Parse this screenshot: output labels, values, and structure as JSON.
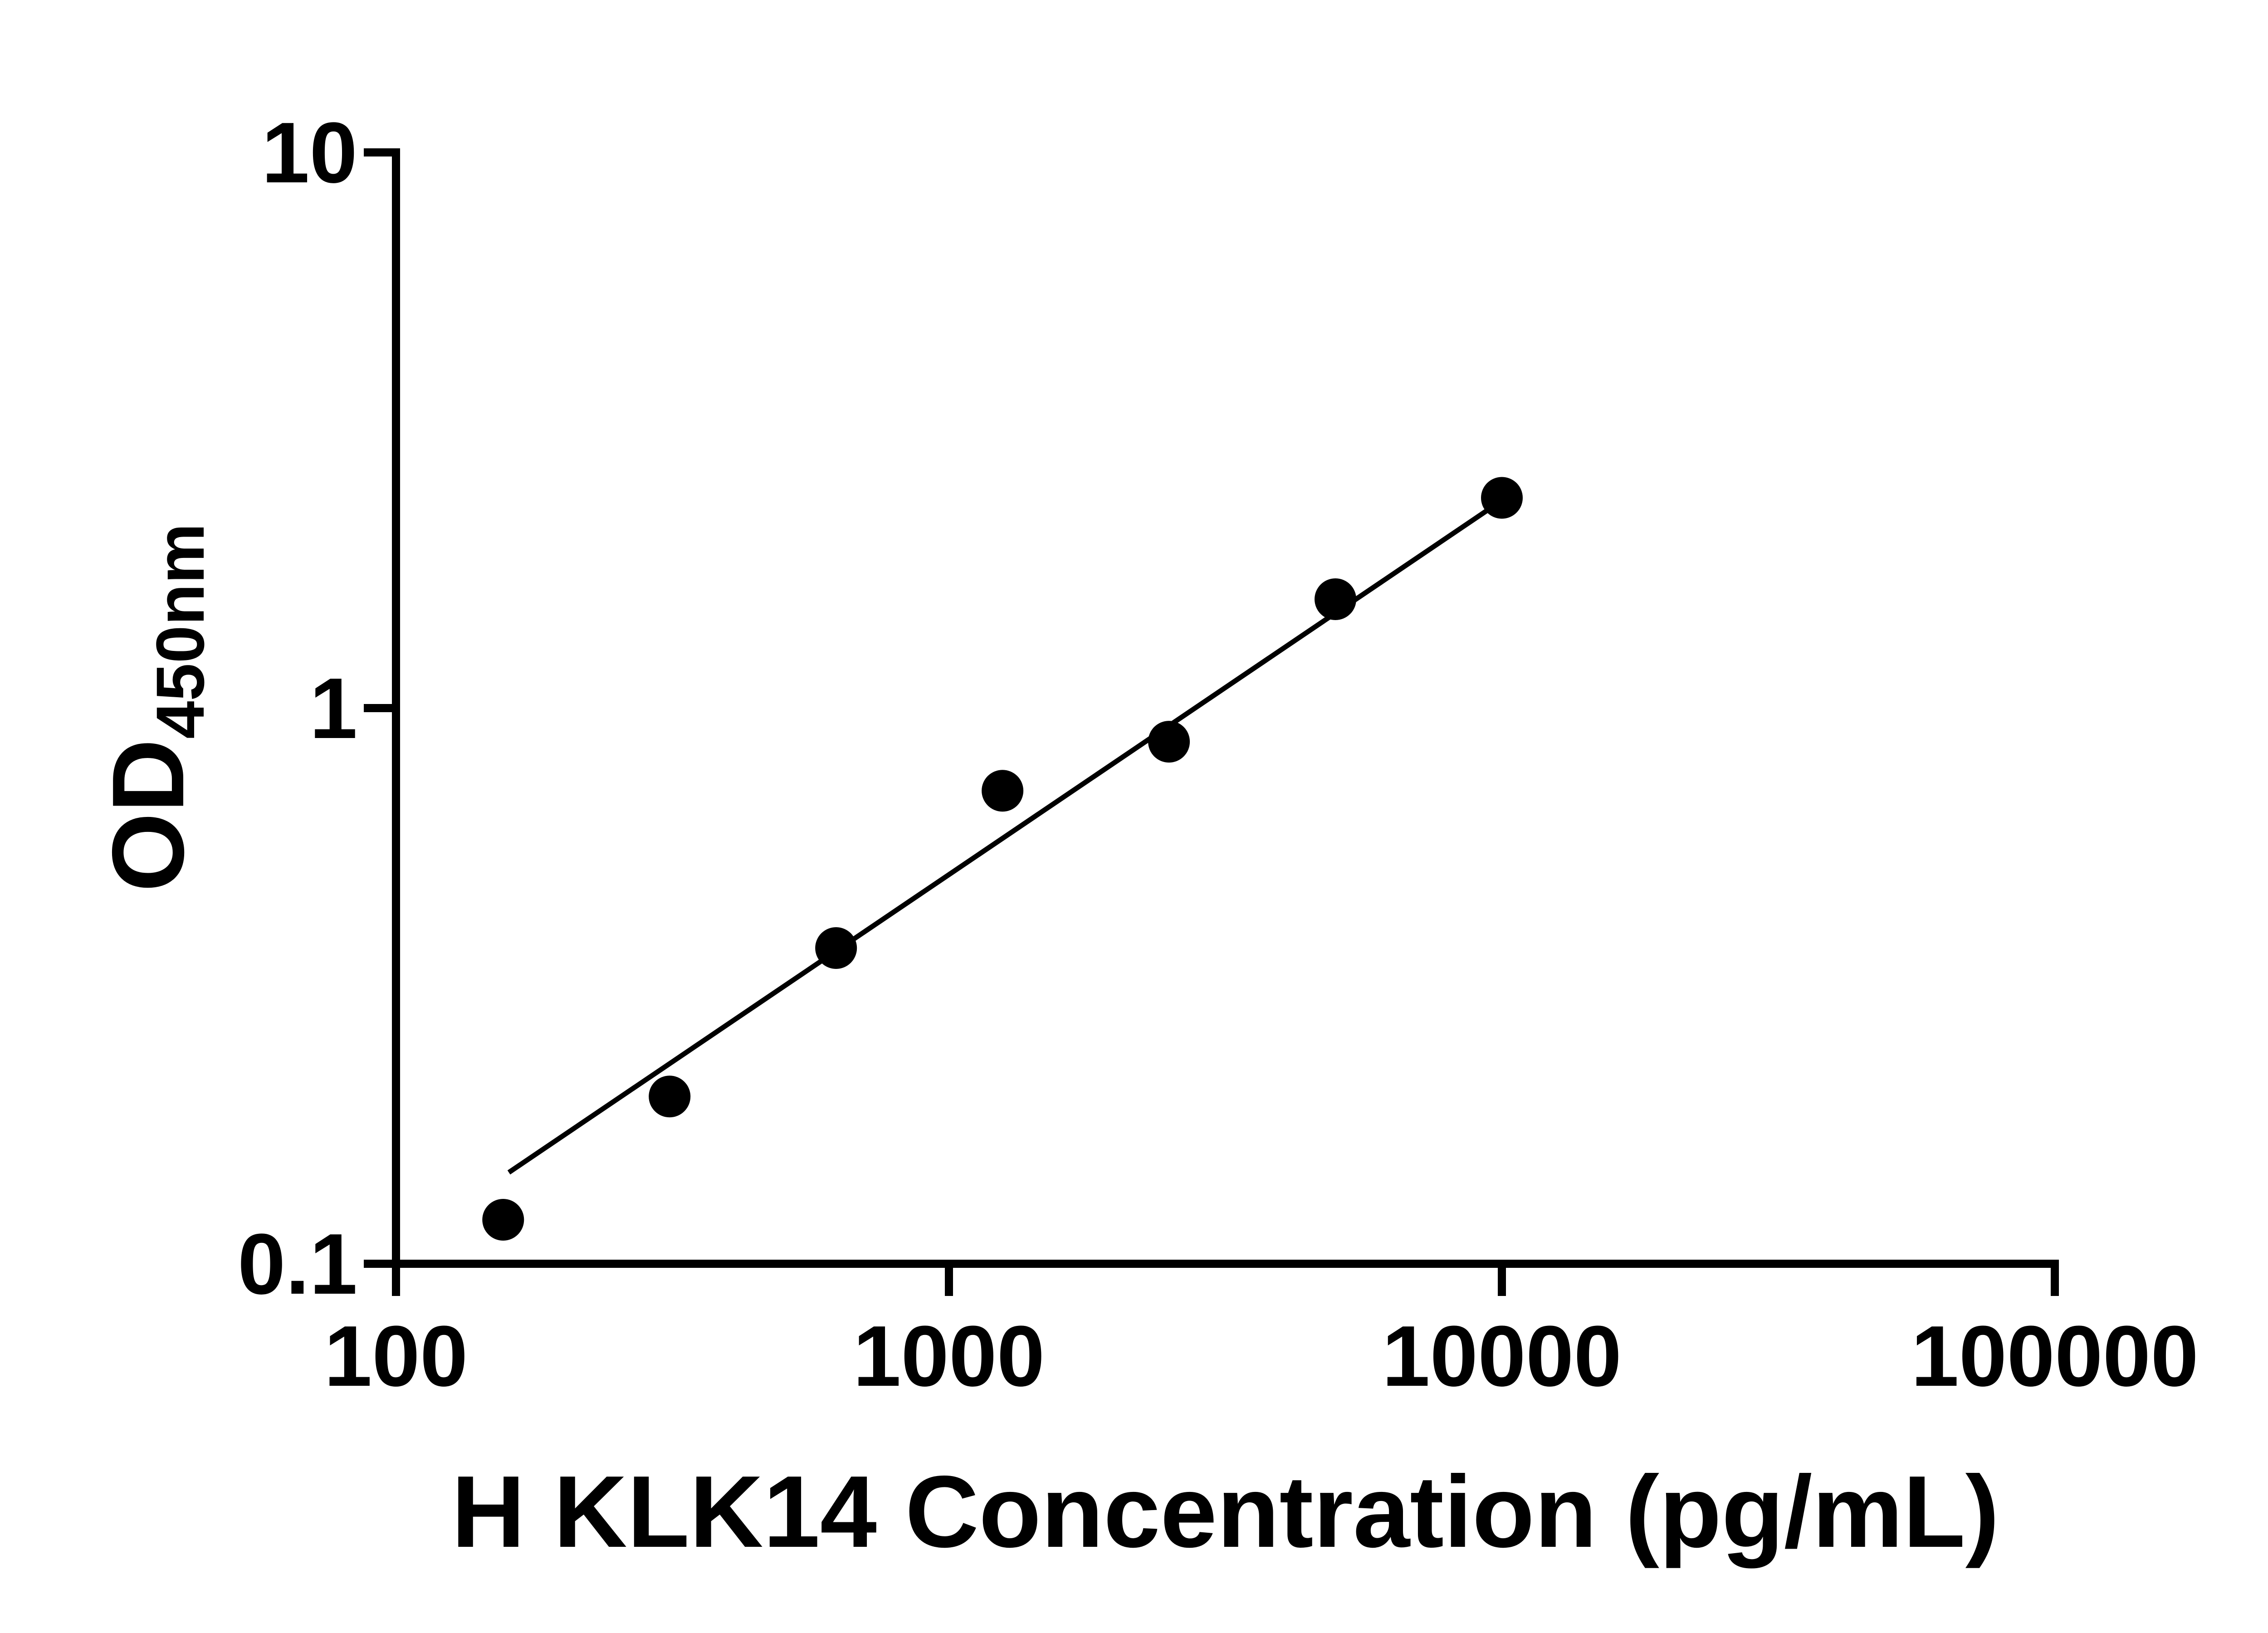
{
  "figure": {
    "background_color": "#ffffff"
  },
  "chart_data": {
    "type": "scatter",
    "title": "",
    "xlabel": "H KLK14 Concentration (pg/mL)",
    "ylabel_main": "OD",
    "ylabel_sub": "450nm",
    "x_scale": "log",
    "y_scale": "log",
    "xlim": [
      100,
      100000
    ],
    "ylim": [
      0.1,
      10
    ],
    "grid": false,
    "legend": false,
    "x_ticks": [
      {
        "value": 100,
        "label": "100"
      },
      {
        "value": 1000,
        "label": "1000"
      },
      {
        "value": 10000,
        "label": "10000"
      },
      {
        "value": 100000,
        "label": "100000"
      }
    ],
    "y_ticks": [
      {
        "value": 0.1,
        "label": "0.1"
      },
      {
        "value": 1,
        "label": "1"
      },
      {
        "value": 10,
        "label": "10"
      }
    ],
    "points": [
      {
        "x": 156.25,
        "y": 0.12
      },
      {
        "x": 312.5,
        "y": 0.2
      },
      {
        "x": 625,
        "y": 0.37
      },
      {
        "x": 1250,
        "y": 0.71
      },
      {
        "x": 2500,
        "y": 0.87
      },
      {
        "x": 5000,
        "y": 1.57
      },
      {
        "x": 10000,
        "y": 2.39
      }
    ],
    "trend_line": {
      "x1": 160,
      "y1": 0.146,
      "x2": 10100,
      "y2": 2.38
    },
    "marker_color": "#000000",
    "line_color": "#000000",
    "axis_color": "#000000",
    "text_color": "#000000"
  }
}
